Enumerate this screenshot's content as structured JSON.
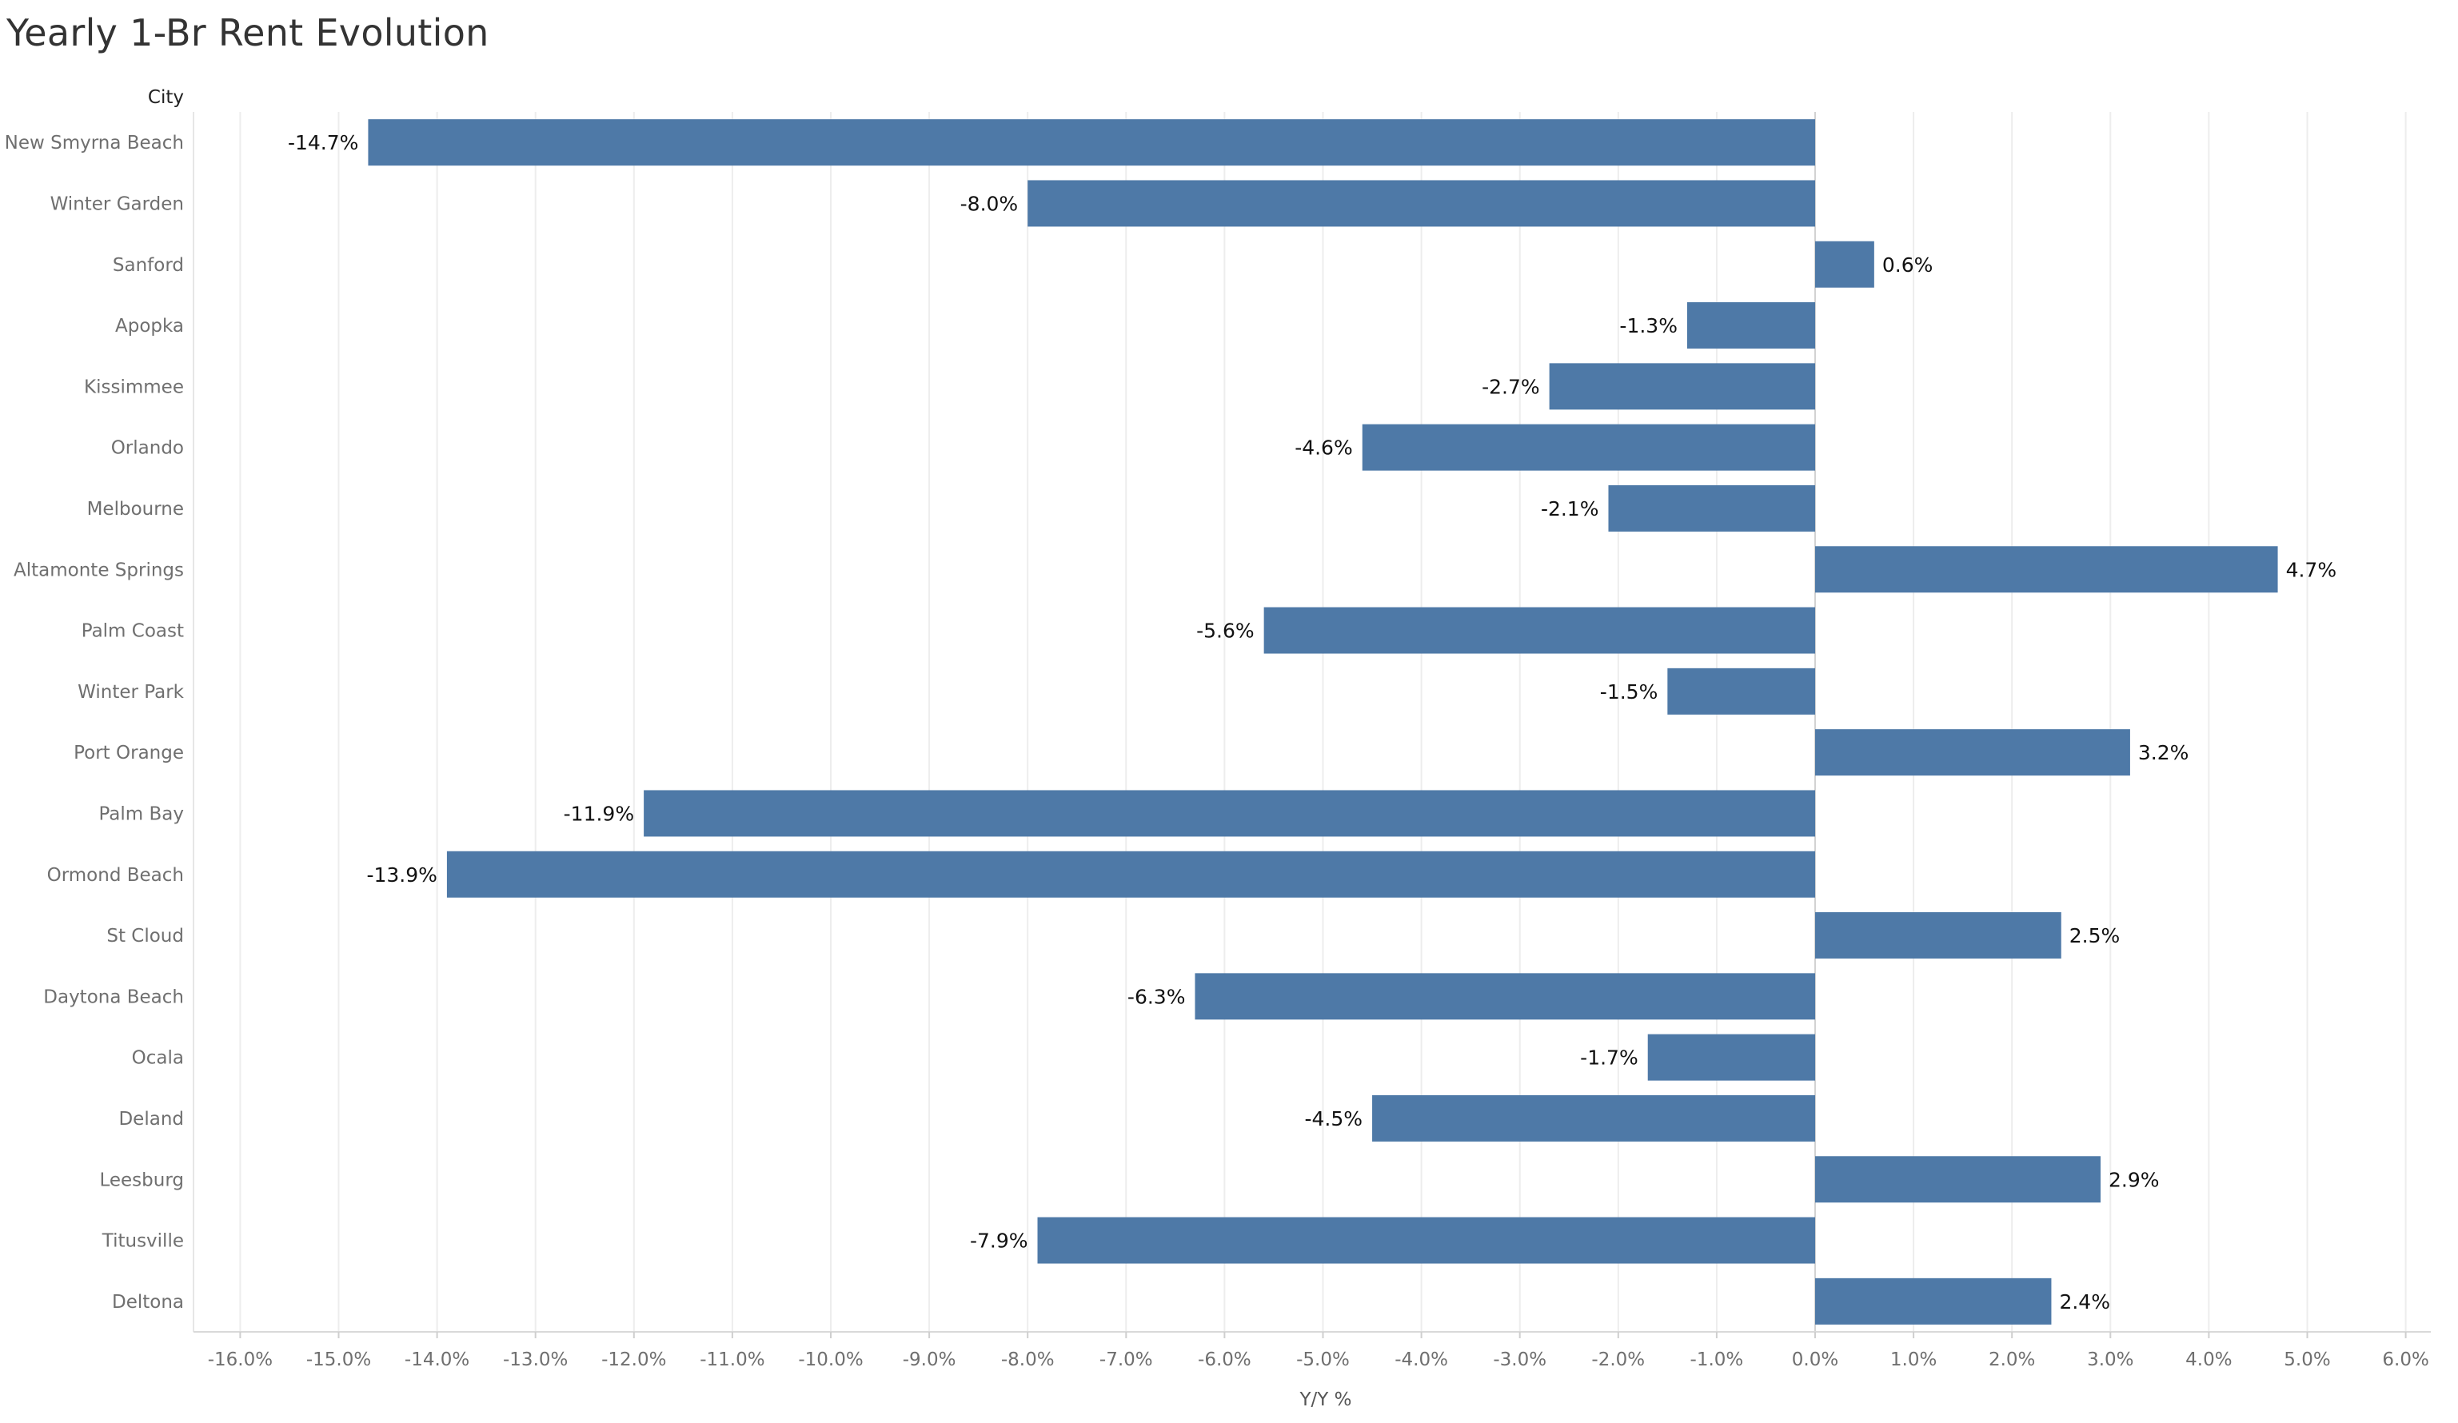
{
  "chart_data": {
    "type": "bar",
    "orientation": "horizontal",
    "title": "Yearly 1-Br Rent Evolution",
    "category_header": "City",
    "xlabel": "Y/Y %",
    "xlim": [
      -16.5,
      6.3
    ],
    "xticks": [
      -16,
      -15,
      -14,
      -13,
      -12,
      -11,
      -10,
      -9,
      -8,
      -7,
      -6,
      -5,
      -4,
      -3,
      -2,
      -1,
      0,
      1,
      2,
      3,
      4,
      5,
      6
    ],
    "tick_labels": [
      "-16.0%",
      "-15.0%",
      "-14.0%",
      "-13.0%",
      "-12.0%",
      "-11.0%",
      "-10.0%",
      "-9.0%",
      "-8.0%",
      "-7.0%",
      "-6.0%",
      "-5.0%",
      "-4.0%",
      "-3.0%",
      "-2.0%",
      "-1.0%",
      "0.0%",
      "1.0%",
      "2.0%",
      "3.0%",
      "4.0%",
      "5.0%",
      "6.0%"
    ],
    "grid": true,
    "bar_color": "#4e79a7",
    "categories": [
      "New Smyrna Beach",
      "Winter Garden",
      "Sanford",
      "Apopka",
      "Kissimmee",
      "Orlando",
      "Melbourne",
      "Altamonte Springs",
      "Palm Coast",
      "Winter Park",
      "Port Orange",
      "Palm Bay",
      "Ormond Beach",
      "St Cloud",
      "Daytona Beach",
      "Ocala",
      "Deland",
      "Leesburg",
      "Titusville",
      "Deltona"
    ],
    "values": [
      -14.7,
      -8.0,
      0.6,
      -1.3,
      -2.7,
      -4.6,
      -2.1,
      4.7,
      -5.6,
      -1.5,
      3.2,
      -11.9,
      -13.9,
      2.5,
      -6.3,
      -1.7,
      -4.5,
      2.9,
      -7.9,
      2.4
    ],
    "value_labels": [
      "-14.7%",
      "-8.0%",
      "0.6%",
      "-1.3%",
      "-2.7%",
      "-4.6%",
      "-2.1%",
      "4.7%",
      "-5.6%",
      "-1.5%",
      "3.2%",
      "-11.9%",
      "-13.9%",
      "2.5%",
      "-6.3%",
      "-1.7%",
      "-4.5%",
      "2.9%",
      "-7.9%",
      "2.4%"
    ]
  }
}
